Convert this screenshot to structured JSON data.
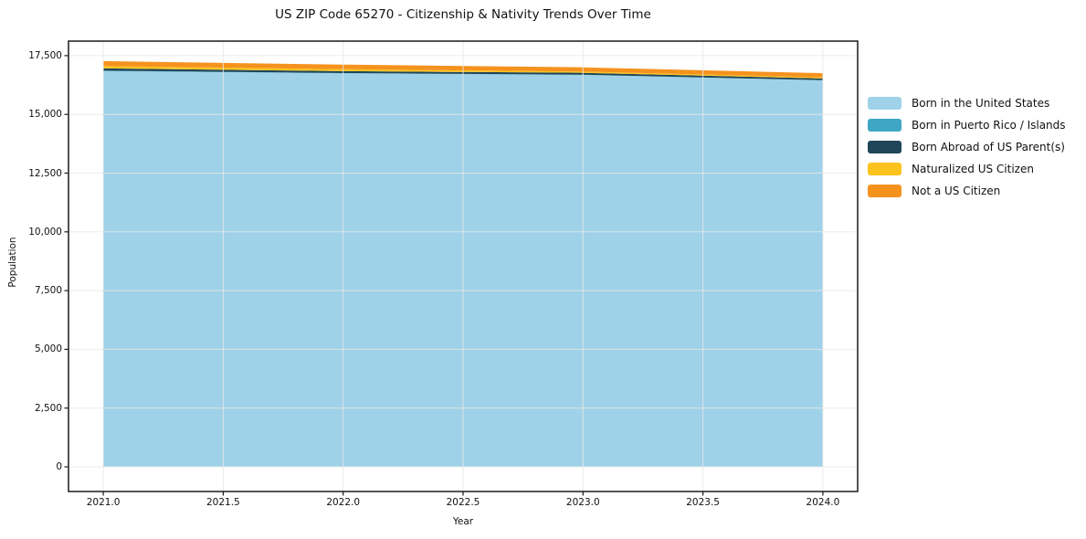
{
  "title": "US ZIP Code 65270 - Citizenship & Nativity Trends Over Time",
  "colors": {
    "background": "#FFFFFF",
    "grid": "#E8E8E8",
    "axis": "#1A1A1A",
    "text": "#111111"
  },
  "chart_data": {
    "type": "area",
    "stacked": true,
    "title": "US ZIP Code 65270 - Citizenship & Nativity Trends Over Time",
    "xlabel": "Year",
    "ylabel": "Population",
    "grid": true,
    "legend_position": "right-outside",
    "x": [
      2021,
      2022,
      2023,
      2024
    ],
    "series": [
      {
        "name": "Born in the United States",
        "color": "#9FD2E8",
        "values": [
          16850,
          16750,
          16680,
          16450
        ]
      },
      {
        "name": "Born in Puerto Rico / Islands",
        "color": "#3FA6C3",
        "values": [
          10,
          10,
          10,
          10
        ]
      },
      {
        "name": "Born Abroad of US Parent(s)",
        "color": "#1F4659",
        "values": [
          100,
          80,
          80,
          70
        ]
      },
      {
        "name": "Naturalized US Citizen",
        "color": "#FCC21D",
        "values": [
          100,
          85,
          50,
          45
        ]
      },
      {
        "name": "Not a US Citizen",
        "color": "#F5921E",
        "values": [
          210,
          195,
          185,
          180
        ]
      }
    ],
    "totals": [
      17270,
      17120,
      17005,
      16755
    ],
    "xlim": [
      2020.855,
      2024.145
    ],
    "ylim": [
      -1050,
      18120
    ],
    "xticks": {
      "values": [
        2021,
        2021.5,
        2022,
        2022.5,
        2023,
        2023.5,
        2024
      ],
      "labels": [
        "2021.0",
        "2021.5",
        "2022.0",
        "2022.5",
        "2023.0",
        "2023.5",
        "2024.0"
      ]
    },
    "yticks": {
      "values": [
        0,
        2500,
        5000,
        7500,
        10000,
        12500,
        15000,
        17500
      ],
      "labels": [
        "0",
        "2,500",
        "5,000",
        "7,500",
        "10,000",
        "12,500",
        "15,000",
        "17,500"
      ]
    }
  }
}
